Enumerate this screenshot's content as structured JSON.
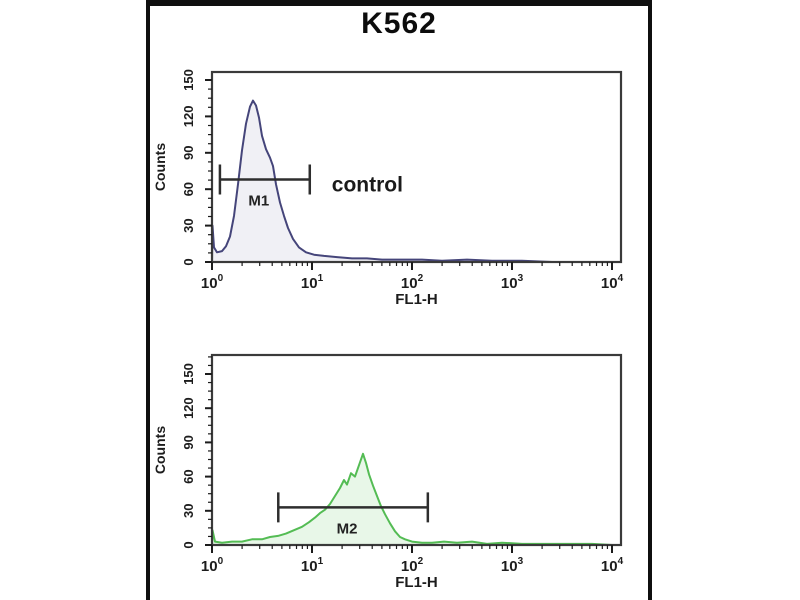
{
  "figure": {
    "title": "K562",
    "background": "#ffffff",
    "border_color": "#0f0f0f",
    "frame_color": "#3a3a3a",
    "text_color": "#1c1c1c"
  },
  "chart_data": [
    {
      "type": "area",
      "panel": "top",
      "xlabel": "FL1-H",
      "ylabel": "Counts",
      "x_scale": "log10",
      "xlim": [
        1,
        10000
      ],
      "ylim": [
        0,
        150
      ],
      "yticks": [
        0,
        30,
        60,
        90,
        120,
        150
      ],
      "xtick_exponents": [
        0,
        1,
        2,
        3,
        4
      ],
      "grid": "off",
      "legend": "none",
      "line_color": "#45457a",
      "fill_color": "rgba(70,70,122,0.08)",
      "marker": {
        "label": "M1",
        "x_from": 1.2,
        "x_to": 9.5,
        "y_counts": 68,
        "annotation": "control"
      },
      "points_log10x_counts": [
        [
          0.0,
          0
        ],
        [
          0.005,
          30
        ],
        [
          0.02,
          12
        ],
        [
          0.05,
          8
        ],
        [
          0.1,
          9
        ],
        [
          0.14,
          13
        ],
        [
          0.18,
          21
        ],
        [
          0.22,
          38
        ],
        [
          0.26,
          64
        ],
        [
          0.3,
          92
        ],
        [
          0.34,
          114
        ],
        [
          0.38,
          128
        ],
        [
          0.41,
          133
        ],
        [
          0.44,
          129
        ],
        [
          0.47,
          119
        ],
        [
          0.5,
          104
        ],
        [
          0.54,
          93
        ],
        [
          0.58,
          86
        ],
        [
          0.61,
          79
        ],
        [
          0.64,
          64
        ],
        [
          0.68,
          49
        ],
        [
          0.72,
          38
        ],
        [
          0.76,
          28
        ],
        [
          0.81,
          19
        ],
        [
          0.87,
          12
        ],
        [
          0.94,
          8
        ],
        [
          1.02,
          6
        ],
        [
          1.12,
          5
        ],
        [
          1.25,
          4
        ],
        [
          1.4,
          3
        ],
        [
          1.55,
          3
        ],
        [
          1.7,
          2
        ],
        [
          1.9,
          2
        ],
        [
          2.1,
          2
        ],
        [
          2.3,
          1
        ],
        [
          2.55,
          2
        ],
        [
          2.8,
          1
        ],
        [
          3.1,
          1
        ],
        [
          3.4,
          0
        ],
        [
          3.7,
          0
        ],
        [
          4.0,
          0
        ]
      ]
    },
    {
      "type": "area",
      "panel": "bottom",
      "xlabel": "FL1-H",
      "ylabel": "Counts",
      "x_scale": "log10",
      "xlim": [
        1,
        10000
      ],
      "ylim": [
        0,
        150
      ],
      "yticks": [
        0,
        30,
        60,
        90,
        120,
        150
      ],
      "xtick_exponents": [
        0,
        1,
        2,
        3,
        4
      ],
      "grid": "off",
      "legend": "none",
      "line_color": "#54bc54",
      "fill_color": "rgba(110,205,110,0.16)",
      "marker": {
        "label": "M2",
        "x_from": 4.6,
        "x_to": 144,
        "y_counts": 33,
        "annotation": ""
      },
      "points_log10x_counts": [
        [
          0.0,
          0
        ],
        [
          0.005,
          13
        ],
        [
          0.03,
          3
        ],
        [
          0.1,
          2
        ],
        [
          0.2,
          3
        ],
        [
          0.3,
          3
        ],
        [
          0.4,
          5
        ],
        [
          0.5,
          5
        ],
        [
          0.58,
          7
        ],
        [
          0.66,
          8
        ],
        [
          0.74,
          10
        ],
        [
          0.82,
          13
        ],
        [
          0.9,
          16
        ],
        [
          0.97,
          20
        ],
        [
          1.03,
          24
        ],
        [
          1.08,
          28
        ],
        [
          1.13,
          31
        ],
        [
          1.18,
          36
        ],
        [
          1.23,
          43
        ],
        [
          1.28,
          50
        ],
        [
          1.32,
          57
        ],
        [
          1.35,
          53
        ],
        [
          1.39,
          63
        ],
        [
          1.43,
          60
        ],
        [
          1.47,
          70
        ],
        [
          1.51,
          80
        ],
        [
          1.54,
          72
        ],
        [
          1.57,
          62
        ],
        [
          1.61,
          52
        ],
        [
          1.65,
          43
        ],
        [
          1.69,
          34
        ],
        [
          1.73,
          27
        ],
        [
          1.78,
          19
        ],
        [
          1.83,
          12
        ],
        [
          1.88,
          7
        ],
        [
          1.93,
          5
        ],
        [
          2.0,
          3
        ],
        [
          2.1,
          2
        ],
        [
          2.2,
          2
        ],
        [
          2.32,
          3
        ],
        [
          2.45,
          2
        ],
        [
          2.6,
          3
        ],
        [
          2.75,
          1
        ],
        [
          2.9,
          2
        ],
        [
          3.1,
          1
        ],
        [
          3.3,
          1
        ],
        [
          3.55,
          1
        ],
        [
          3.8,
          1
        ],
        [
          4.0,
          0
        ]
      ]
    }
  ]
}
